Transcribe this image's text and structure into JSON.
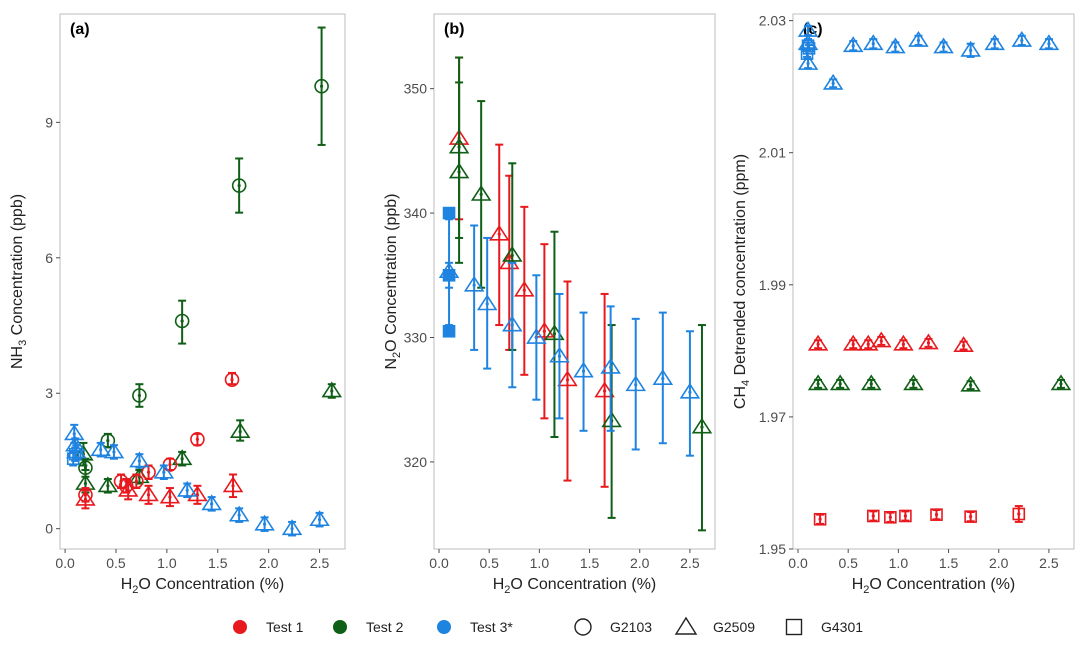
{
  "colors": {
    "test1": "#e8191e",
    "test2": "#0f5f16",
    "test3": "#1f83e0"
  },
  "legend": {
    "tests": [
      {
        "key": "test1",
        "label": "Test 1"
      },
      {
        "key": "test2",
        "label": "Test 2"
      },
      {
        "key": "test3",
        "label": "Test 3*"
      }
    ],
    "analyzers": [
      {
        "shape": "circle",
        "label": "G2103"
      },
      {
        "shape": "triangle",
        "label": "G2509"
      },
      {
        "shape": "square",
        "label": "G4301"
      }
    ]
  },
  "chart_data": [
    {
      "type": "scatter",
      "panel": "(a)",
      "xlabel": "H2O Concentration (%)",
      "ylabel": "NH3 Concentration (ppb)",
      "xlim": [
        -0.05,
        2.75
      ],
      "ylim": [
        -0.45,
        11.4
      ],
      "xticks": [
        0.0,
        0.5,
        1.0,
        1.5,
        2.0,
        2.5
      ],
      "xtick_labels": [
        "0.0",
        "0.5",
        "1.0",
        "1.5",
        "2.0",
        "2.5"
      ],
      "yticks": [
        0,
        3,
        6,
        9
      ],
      "ytick_labels": [
        "0",
        "3",
        "6",
        "9"
      ],
      "points": [
        {
          "s": "test2",
          "m": "circle",
          "x": 2.52,
          "y": 9.8,
          "lo": 8.5,
          "hi": 11.1
        },
        {
          "s": "test2",
          "m": "circle",
          "x": 1.71,
          "y": 7.6,
          "lo": 7.0,
          "hi": 8.2
        },
        {
          "s": "test2",
          "m": "circle",
          "x": 1.15,
          "y": 4.6,
          "lo": 4.1,
          "hi": 5.05
        },
        {
          "s": "test2",
          "m": "circle",
          "x": 0.73,
          "y": 2.95,
          "lo": 2.7,
          "hi": 3.2
        },
        {
          "s": "test2",
          "m": "circle",
          "x": 0.42,
          "y": 1.95,
          "lo": 1.8,
          "hi": 2.1
        },
        {
          "s": "test2",
          "m": "circle",
          "x": 0.2,
          "y": 1.35,
          "lo": 1.15,
          "hi": 1.55
        },
        {
          "s": "test2",
          "m": "triangle",
          "x": 2.62,
          "y": 3.05,
          "lo": 2.9,
          "hi": 3.2
        },
        {
          "s": "test2",
          "m": "triangle",
          "x": 1.72,
          "y": 2.15,
          "lo": 1.95,
          "hi": 2.4
        },
        {
          "s": "test2",
          "m": "triangle",
          "x": 1.15,
          "y": 1.55,
          "lo": 1.4,
          "hi": 1.7
        },
        {
          "s": "test2",
          "m": "triangle",
          "x": 0.73,
          "y": 1.15,
          "lo": 1.0,
          "hi": 1.3
        },
        {
          "s": "test2",
          "m": "triangle",
          "x": 0.42,
          "y": 0.95,
          "lo": 0.8,
          "hi": 1.1
        },
        {
          "s": "test2",
          "m": "triangle",
          "x": 0.2,
          "y": 1.0,
          "lo": 0.8,
          "hi": 1.3
        },
        {
          "s": "test2",
          "m": "triangle",
          "x": 0.18,
          "y": 1.65,
          "lo": 1.4,
          "hi": 1.9
        },
        {
          "s": "test1",
          "m": "circle",
          "x": 1.64,
          "y": 3.3,
          "lo": 3.2,
          "hi": 3.45
        },
        {
          "s": "test1",
          "m": "circle",
          "x": 1.3,
          "y": 1.98,
          "lo": 1.85,
          "hi": 2.1
        },
        {
          "s": "test1",
          "m": "circle",
          "x": 1.03,
          "y": 1.42,
          "lo": 1.3,
          "hi": 1.55
        },
        {
          "s": "test1",
          "m": "circle",
          "x": 0.82,
          "y": 1.25,
          "lo": 1.1,
          "hi": 1.4
        },
        {
          "s": "test1",
          "m": "circle",
          "x": 0.7,
          "y": 1.05,
          "lo": 0.9,
          "hi": 1.2
        },
        {
          "s": "test1",
          "m": "circle",
          "x": 0.6,
          "y": 0.95,
          "lo": 0.8,
          "hi": 1.1
        },
        {
          "s": "test1",
          "m": "circle",
          "x": 0.55,
          "y": 1.05,
          "lo": 0.9,
          "hi": 1.2
        },
        {
          "s": "test1",
          "m": "circle",
          "x": 0.2,
          "y": 0.75,
          "lo": 0.6,
          "hi": 0.9
        },
        {
          "s": "test1",
          "m": "triangle",
          "x": 1.65,
          "y": 0.95,
          "lo": 0.7,
          "hi": 1.2
        },
        {
          "s": "test1",
          "m": "triangle",
          "x": 1.3,
          "y": 0.75,
          "lo": 0.55,
          "hi": 0.95
        },
        {
          "s": "test1",
          "m": "triangle",
          "x": 1.03,
          "y": 0.7,
          "lo": 0.5,
          "hi": 0.9
        },
        {
          "s": "test1",
          "m": "triangle",
          "x": 0.82,
          "y": 0.75,
          "lo": 0.55,
          "hi": 0.95
        },
        {
          "s": "test1",
          "m": "triangle",
          "x": 0.62,
          "y": 0.85,
          "lo": 0.65,
          "hi": 1.05
        },
        {
          "s": "test1",
          "m": "triangle",
          "x": 0.2,
          "y": 0.65,
          "lo": 0.45,
          "hi": 0.85
        },
        {
          "s": "test3",
          "m": "triangle",
          "x": 0.09,
          "y": 2.1,
          "lo": 1.9,
          "hi": 2.3
        },
        {
          "s": "test3",
          "m": "triangle",
          "x": 0.35,
          "y": 1.75,
          "lo": 1.6,
          "hi": 1.9
        },
        {
          "s": "test3",
          "m": "triangle",
          "x": 0.48,
          "y": 1.7,
          "lo": 1.55,
          "hi": 1.85
        },
        {
          "s": "test3",
          "m": "triangle",
          "x": 0.73,
          "y": 1.5,
          "lo": 1.35,
          "hi": 1.65
        },
        {
          "s": "test3",
          "m": "triangle",
          "x": 0.97,
          "y": 1.25,
          "lo": 1.1,
          "hi": 1.4
        },
        {
          "s": "test3",
          "m": "triangle",
          "x": 1.2,
          "y": 0.85,
          "lo": 0.7,
          "hi": 1.0
        },
        {
          "s": "test3",
          "m": "triangle",
          "x": 1.44,
          "y": 0.55,
          "lo": 0.4,
          "hi": 0.7
        },
        {
          "s": "test3",
          "m": "triangle",
          "x": 1.71,
          "y": 0.3,
          "lo": 0.15,
          "hi": 0.45
        },
        {
          "s": "test3",
          "m": "triangle",
          "x": 1.96,
          "y": 0.1,
          "lo": -0.05,
          "hi": 0.25
        },
        {
          "s": "test3",
          "m": "triangle",
          "x": 2.23,
          "y": 0.0,
          "lo": -0.15,
          "hi": 0.15
        },
        {
          "s": "test3",
          "m": "triangle",
          "x": 2.5,
          "y": 0.2,
          "lo": 0.05,
          "hi": 0.35
        },
        {
          "s": "test3",
          "m": "triangle",
          "x": 0.1,
          "y": 1.85,
          "lo": 1.7,
          "hi": 2.0
        },
        {
          "s": "test3",
          "m": "triangle",
          "x": 0.11,
          "y": 1.7,
          "lo": 1.55,
          "hi": 1.85
        },
        {
          "s": "test3",
          "m": "square",
          "x": 0.08,
          "y": 1.55,
          "lo": 1.4,
          "hi": 1.7
        },
        {
          "s": "test3",
          "m": "square",
          "x": 0.1,
          "y": 1.65,
          "lo": 1.5,
          "hi": 1.8
        }
      ]
    },
    {
      "type": "scatter",
      "panel": "(b)",
      "xlabel": "H2O Concentration (%)",
      "ylabel": "N2O Concentration (ppb)",
      "xlim": [
        -0.05,
        2.75
      ],
      "ylim": [
        313,
        356
      ],
      "xticks": [
        0.0,
        0.5,
        1.0,
        1.5,
        2.0,
        2.5
      ],
      "xtick_labels": [
        "0.0",
        "0.5",
        "1.0",
        "1.5",
        "2.0",
        "2.5"
      ],
      "yticks": [
        320,
        330,
        340,
        350
      ],
      "ytick_labels": [
        "320",
        "330",
        "340",
        "350"
      ],
      "points": [
        {
          "s": "test1",
          "m": "triangle",
          "x": 0.2,
          "y": 346,
          "lo": 339.5,
          "hi": 352.5
        },
        {
          "s": "test1",
          "m": "triangle",
          "x": 0.6,
          "y": 338.3,
          "lo": 331,
          "hi": 345.5
        },
        {
          "s": "test1",
          "m": "triangle",
          "x": 0.7,
          "y": 336,
          "lo": 329,
          "hi": 343
        },
        {
          "s": "test1",
          "m": "triangle",
          "x": 0.85,
          "y": 333.8,
          "lo": 327,
          "hi": 340.5
        },
        {
          "s": "test1",
          "m": "triangle",
          "x": 1.05,
          "y": 330.5,
          "lo": 323.5,
          "hi": 337.5
        },
        {
          "s": "test1",
          "m": "triangle",
          "x": 1.28,
          "y": 326.6,
          "lo": 318.5,
          "hi": 334.5
        },
        {
          "s": "test1",
          "m": "triangle",
          "x": 1.65,
          "y": 325.7,
          "lo": 318,
          "hi": 333.5
        },
        {
          "s": "test2",
          "m": "triangle",
          "x": 0.2,
          "y": 345.3,
          "lo": 338,
          "hi": 352.5
        },
        {
          "s": "test2",
          "m": "triangle",
          "x": 0.2,
          "y": 343.3,
          "lo": 336,
          "hi": 350.5
        },
        {
          "s": "test2",
          "m": "triangle",
          "x": 0.42,
          "y": 341.5,
          "lo": 334,
          "hi": 349
        },
        {
          "s": "test2",
          "m": "triangle",
          "x": 0.73,
          "y": 336.6,
          "lo": 329,
          "hi": 344
        },
        {
          "s": "test2",
          "m": "triangle",
          "x": 1.15,
          "y": 330.3,
          "lo": 322,
          "hi": 338.5
        },
        {
          "s": "test2",
          "m": "triangle",
          "x": 1.72,
          "y": 323.3,
          "lo": 315.5,
          "hi": 331
        },
        {
          "s": "test2",
          "m": "triangle",
          "x": 2.62,
          "y": 322.8,
          "lo": 314.5,
          "hi": 331
        },
        {
          "s": "test3",
          "m": "triangle",
          "x": 0.1,
          "y": 335.3,
          "lo": 331,
          "hi": 339.5
        },
        {
          "s": "test3",
          "m": "triangle",
          "x": 0.35,
          "y": 334.2,
          "lo": 329,
          "hi": 339
        },
        {
          "s": "test3",
          "m": "triangle",
          "x": 0.48,
          "y": 332.7,
          "lo": 327.5,
          "hi": 338
        },
        {
          "s": "test3",
          "m": "triangle",
          "x": 0.73,
          "y": 331,
          "lo": 326,
          "hi": 336
        },
        {
          "s": "test3",
          "m": "triangle",
          "x": 0.97,
          "y": 330,
          "lo": 325,
          "hi": 335
        },
        {
          "s": "test3",
          "m": "triangle",
          "x": 1.2,
          "y": 328.5,
          "lo": 323.5,
          "hi": 333.5
        },
        {
          "s": "test3",
          "m": "triangle",
          "x": 1.44,
          "y": 327.3,
          "lo": 322.5,
          "hi": 332
        },
        {
          "s": "test3",
          "m": "triangle",
          "x": 1.71,
          "y": 327.6,
          "lo": 322.5,
          "hi": 332.5
        },
        {
          "s": "test3",
          "m": "triangle",
          "x": 1.96,
          "y": 326.2,
          "lo": 321,
          "hi": 331.5
        },
        {
          "s": "test3",
          "m": "triangle",
          "x": 2.23,
          "y": 326.7,
          "lo": 321.5,
          "hi": 332
        },
        {
          "s": "test3",
          "m": "triangle",
          "x": 2.5,
          "y": 325.6,
          "lo": 320.5,
          "hi": 330.5
        },
        {
          "s": "test3",
          "m": "square",
          "x": 0.1,
          "y": 330.5,
          "lo": 330.5,
          "hi": 330.5
        },
        {
          "s": "test3",
          "m": "square",
          "x": 0.1,
          "y": 340,
          "lo": 340,
          "hi": 340
        },
        {
          "s": "test3",
          "m": "square",
          "x": 0.1,
          "y": 335,
          "lo": 334,
          "hi": 336
        }
      ]
    },
    {
      "type": "scatter",
      "panel": "(c)",
      "xlabel": "H2O Concentration (%)",
      "ylabel": "CH4 Detrended concentration (ppm)",
      "xlim": [
        -0.05,
        2.75
      ],
      "ylim": [
        1.95,
        2.031
      ],
      "xticks": [
        0.0,
        0.5,
        1.0,
        1.5,
        2.0,
        2.5
      ],
      "xtick_labels": [
        "0.0",
        "0.5",
        "1.0",
        "1.5",
        "2.0",
        "2.5"
      ],
      "yticks": [
        1.95,
        1.97,
        1.99,
        2.01,
        2.03
      ],
      "ytick_labels": [
        "1.95",
        "1.97",
        "1.99",
        "2.01",
        "2.03"
      ],
      "points": [
        {
          "s": "test3",
          "m": "triangle",
          "x": 0.1,
          "y": 2.0285,
          "lo": 2.0278,
          "hi": 2.0292
        },
        {
          "s": "test3",
          "m": "triangle",
          "x": 0.1,
          "y": 2.0265,
          "lo": 2.0258,
          "hi": 2.0272
        },
        {
          "s": "test3",
          "m": "triangle",
          "x": 0.1,
          "y": 2.0235,
          "lo": 2.0228,
          "hi": 2.0242
        },
        {
          "s": "test3",
          "m": "triangle",
          "x": 0.35,
          "y": 2.0205,
          "lo": 2.0199,
          "hi": 2.0211
        },
        {
          "s": "test3",
          "m": "triangle",
          "x": 0.55,
          "y": 2.0262,
          "lo": 2.0255,
          "hi": 2.0269
        },
        {
          "s": "test3",
          "m": "triangle",
          "x": 0.75,
          "y": 2.0265,
          "lo": 2.0258,
          "hi": 2.0272
        },
        {
          "s": "test3",
          "m": "triangle",
          "x": 0.97,
          "y": 2.026,
          "lo": 2.0253,
          "hi": 2.0267
        },
        {
          "s": "test3",
          "m": "triangle",
          "x": 1.2,
          "y": 2.027,
          "lo": 2.0263,
          "hi": 2.0277
        },
        {
          "s": "test3",
          "m": "triangle",
          "x": 1.45,
          "y": 2.026,
          "lo": 2.0253,
          "hi": 2.0267
        },
        {
          "s": "test3",
          "m": "triangle",
          "x": 1.72,
          "y": 2.0255,
          "lo": 2.0245,
          "hi": 2.0265
        },
        {
          "s": "test3",
          "m": "triangle",
          "x": 1.96,
          "y": 2.0265,
          "lo": 2.0258,
          "hi": 2.0272
        },
        {
          "s": "test3",
          "m": "triangle",
          "x": 2.23,
          "y": 2.027,
          "lo": 2.0263,
          "hi": 2.0277
        },
        {
          "s": "test3",
          "m": "triangle",
          "x": 2.5,
          "y": 2.0265,
          "lo": 2.0258,
          "hi": 2.0272
        },
        {
          "s": "test3",
          "m": "square",
          "x": 0.09,
          "y": 2.025,
          "lo": 2.0245,
          "hi": 2.0255
        },
        {
          "s": "test3",
          "m": "square",
          "x": 0.11,
          "y": 2.0258,
          "lo": 2.0253,
          "hi": 2.0263
        },
        {
          "s": "test3",
          "m": "square",
          "x": 0.1,
          "y": 2.0262,
          "lo": 2.0257,
          "hi": 2.0267
        },
        {
          "s": "test1",
          "m": "triangle",
          "x": 0.2,
          "y": 1.981,
          "lo": 1.9804,
          "hi": 1.9816
        },
        {
          "s": "test1",
          "m": "triangle",
          "x": 0.55,
          "y": 1.981,
          "lo": 1.9804,
          "hi": 1.9816
        },
        {
          "s": "test1",
          "m": "triangle",
          "x": 0.7,
          "y": 1.981,
          "lo": 1.9804,
          "hi": 1.9816
        },
        {
          "s": "test1",
          "m": "triangle",
          "x": 0.83,
          "y": 1.9815,
          "lo": 1.9809,
          "hi": 1.9821
        },
        {
          "s": "test1",
          "m": "triangle",
          "x": 1.05,
          "y": 1.981,
          "lo": 1.9804,
          "hi": 1.9816
        },
        {
          "s": "test1",
          "m": "triangle",
          "x": 1.3,
          "y": 1.9812,
          "lo": 1.9806,
          "hi": 1.9818
        },
        {
          "s": "test1",
          "m": "triangle",
          "x": 1.65,
          "y": 1.9808,
          "lo": 1.9802,
          "hi": 1.9814
        },
        {
          "s": "test2",
          "m": "triangle",
          "x": 0.2,
          "y": 1.975,
          "lo": 1.9744,
          "hi": 1.9756
        },
        {
          "s": "test2",
          "m": "triangle",
          "x": 0.42,
          "y": 1.975,
          "lo": 1.9744,
          "hi": 1.9756
        },
        {
          "s": "test2",
          "m": "triangle",
          "x": 0.73,
          "y": 1.975,
          "lo": 1.9744,
          "hi": 1.9756
        },
        {
          "s": "test2",
          "m": "triangle",
          "x": 1.15,
          "y": 1.975,
          "lo": 1.9744,
          "hi": 1.9756
        },
        {
          "s": "test2",
          "m": "triangle",
          "x": 1.72,
          "y": 1.9748,
          "lo": 1.9742,
          "hi": 1.9754
        },
        {
          "s": "test2",
          "m": "triangle",
          "x": 2.62,
          "y": 1.975,
          "lo": 1.9744,
          "hi": 1.9756
        },
        {
          "s": "test1",
          "m": "square",
          "x": 0.22,
          "y": 1.9545,
          "lo": 1.9538,
          "hi": 1.9552
        },
        {
          "s": "test1",
          "m": "square",
          "x": 0.75,
          "y": 1.955,
          "lo": 1.9543,
          "hi": 1.9557
        },
        {
          "s": "test1",
          "m": "square",
          "x": 0.92,
          "y": 1.9548,
          "lo": 1.9541,
          "hi": 1.9555
        },
        {
          "s": "test1",
          "m": "square",
          "x": 1.07,
          "y": 1.955,
          "lo": 1.9543,
          "hi": 1.9557
        },
        {
          "s": "test1",
          "m": "square",
          "x": 1.38,
          "y": 1.9552,
          "lo": 1.9545,
          "hi": 1.9559
        },
        {
          "s": "test1",
          "m": "square",
          "x": 1.72,
          "y": 1.9549,
          "lo": 1.9542,
          "hi": 1.9556
        },
        {
          "s": "test1",
          "m": "square",
          "x": 2.2,
          "y": 1.9553,
          "lo": 1.9541,
          "hi": 1.9565
        }
      ]
    }
  ]
}
